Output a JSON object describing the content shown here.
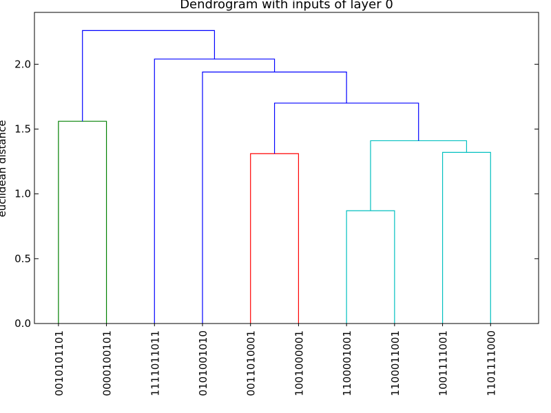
{
  "chart_data": {
    "type": "dendrogram",
    "title": "Dendrogram with inputs of layer 0",
    "xlabel": "",
    "ylabel": "euclidean distance",
    "ylim": [
      0,
      2.4
    ],
    "yticks": [
      0.0,
      0.5,
      1.0,
      1.5,
      2.0
    ],
    "ytick_labels": [
      "0.0",
      "0.5",
      "1.0",
      "1.5",
      "2.0"
    ],
    "grid": false,
    "leaves": [
      "0010101101",
      "0000100101",
      "1111011011",
      "0101001010",
      "0011010001",
      "1001000001",
      "1100001001",
      "1100011001",
      "1001111001",
      "1101111000"
    ],
    "links": [
      {
        "left": 0,
        "right": 1,
        "height": 1.56,
        "color": "#008000"
      },
      {
        "left": 4,
        "right": 5,
        "height": 1.31,
        "color": "#ff0000"
      },
      {
        "left": 6,
        "right": 7,
        "height": 0.87,
        "color": "#00bfbf"
      },
      {
        "left": 8,
        "right": 9,
        "height": 1.32,
        "color": "#00bfbf"
      },
      {
        "left": 12,
        "right": 13,
        "height": 1.41,
        "color": "#00bfbf"
      },
      {
        "left": 11,
        "right": 14,
        "height": 1.7,
        "color": "#0000ff"
      },
      {
        "left": 3,
        "right": 15,
        "height": 1.94,
        "color": "#0000ff"
      },
      {
        "left": 2,
        "right": 16,
        "height": 2.04,
        "color": "#0000ff"
      },
      {
        "left": 10,
        "right": 17,
        "height": 2.26,
        "color": "#0000ff"
      }
    ]
  }
}
